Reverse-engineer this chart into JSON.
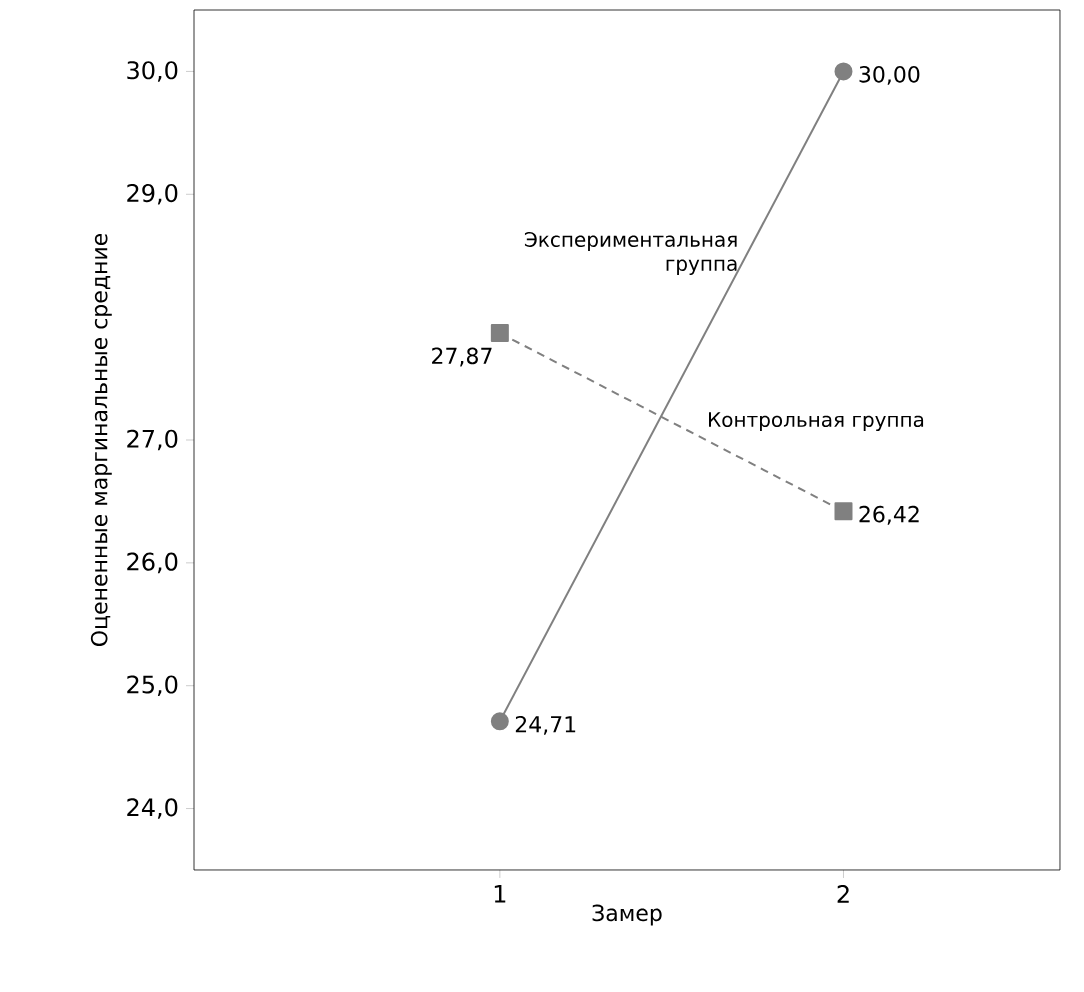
{
  "chart_data": {
    "type": "line",
    "xlabel": "Замер",
    "ylabel": "Оцененные маргинальные средние",
    "x": [
      1,
      2
    ],
    "xlim": [
      0.11,
      2.63
    ],
    "xticks": [
      1,
      2
    ],
    "ylim": [
      23.5,
      30.5
    ],
    "yticks": [
      {
        "value": 24,
        "label": "24,0"
      },
      {
        "value": 25,
        "label": "25,0"
      },
      {
        "value": 26,
        "label": "26,0"
      },
      {
        "value": 27,
        "label": "27,0"
      },
      {
        "value": 29,
        "label": "29,0"
      },
      {
        "value": 30,
        "label": "30,0"
      }
    ],
    "series": [
      {
        "name": "Экспериментальная группа",
        "color": "#808080",
        "values": [
          24.71,
          30.0
        ],
        "value_labels": [
          "24,71",
          "30,00"
        ],
        "marker": "circle",
        "line_style": "solid"
      },
      {
        "name": "Контрольная группа",
        "color": "#808080",
        "values": [
          27.87,
          26.42
        ],
        "value_labels": [
          "27,87",
          "26,42"
        ],
        "marker": "square",
        "line_style": "dashed"
      }
    ],
    "grid": false,
    "legend": false
  }
}
